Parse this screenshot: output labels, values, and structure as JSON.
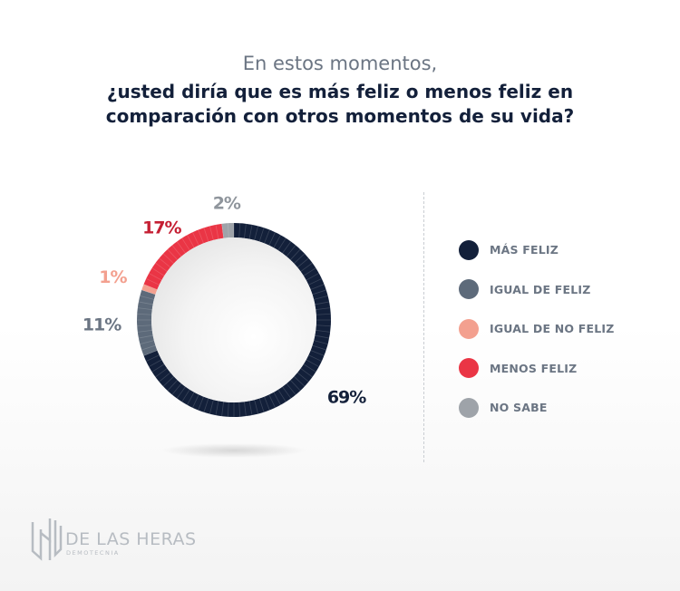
{
  "header": {
    "title_line1": "En estos momentos,",
    "title_line2": "¿usted diría que es más feliz o menos feliz en comparación con otros momentos de su vida?"
  },
  "chart_data": {
    "type": "pie",
    "categories": [
      "MÁS FELIZ",
      "IGUAL DE FELIZ",
      "IGUAL DE NO FELIZ",
      "MENOS FELIZ",
      "NO SABE"
    ],
    "values": [
      69,
      11,
      1,
      17,
      2
    ],
    "labels": [
      "69%",
      "11%",
      "1%",
      "17%",
      "2%"
    ],
    "colors": [
      "#13203a",
      "#5d6a7a",
      "#f3a08f",
      "#ea3545",
      "#9ea3a9"
    ],
    "label_colors": [
      "#13203a",
      "#6b7583",
      "#f3a08f",
      "#c51f33",
      "#8f959c"
    ],
    "donut": true,
    "legend": "right"
  },
  "logo": {
    "name": "DE LAS HERAS",
    "sub": "DEMOTECNIA"
  }
}
